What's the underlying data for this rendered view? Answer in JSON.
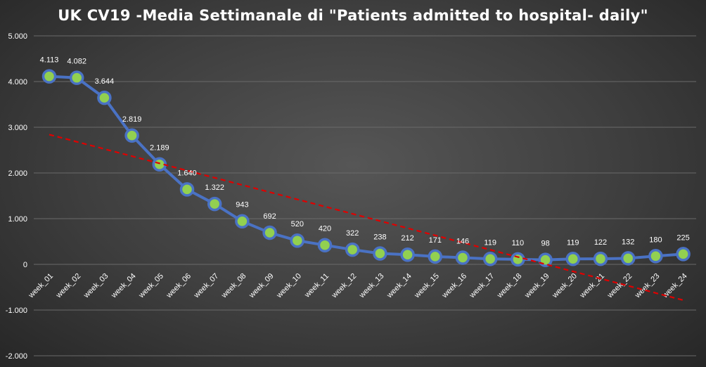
{
  "chart_data": {
    "type": "line",
    "title": "UK CV19 -Media Settimanale di \"Patients admitted to hospital- daily\"",
    "categories": [
      "week_01",
      "week_02",
      "week_03",
      "week_04",
      "week_05",
      "week_06",
      "week_07",
      "week_08",
      "week_09",
      "week_10",
      "week_11",
      "week_12",
      "week_13",
      "week_14",
      "week_15",
      "week_16",
      "week_17",
      "week_18",
      "week_19",
      "week_20",
      "week_21",
      "week_22",
      "week_23",
      "week_24"
    ],
    "series": [
      {
        "values": [
          4113,
          4082,
          3644,
          2819,
          2189,
          1640,
          1322,
          943,
          692,
          520,
          420,
          322,
          238,
          212,
          171,
          146,
          119,
          110,
          98,
          119,
          122,
          132,
          180,
          225
        ],
        "data_labels": [
          "4.113",
          "4.082",
          "3.644",
          "2.819",
          "2.189",
          "1.640",
          "1.322",
          "943",
          "692",
          "520",
          "420",
          "322",
          "238",
          "212",
          "171",
          "146",
          "119",
          "110",
          "98",
          "119",
          "122",
          "132",
          "180",
          "225"
        ]
      }
    ],
    "trendline": {
      "type": "linear",
      "start": 2840,
      "end": -800
    },
    "ylim": [
      -2000,
      5000
    ],
    "yticks": [
      5000,
      4000,
      3000,
      2000,
      1000,
      0,
      -1000,
      -2000
    ],
    "ytick_labels": [
      "5.000",
      "4.000",
      "3.000",
      "2.000",
      "1.000",
      "0",
      "-1.000",
      "-2.000"
    ],
    "xlabel": "",
    "ylabel": "",
    "grid": true,
    "legend": "none",
    "colors": {
      "line": "#4a72c4",
      "marker_fill": "#92d050",
      "trendline": "#e00000",
      "grid": "#6a6a6a",
      "text": "#ffffff"
    }
  }
}
